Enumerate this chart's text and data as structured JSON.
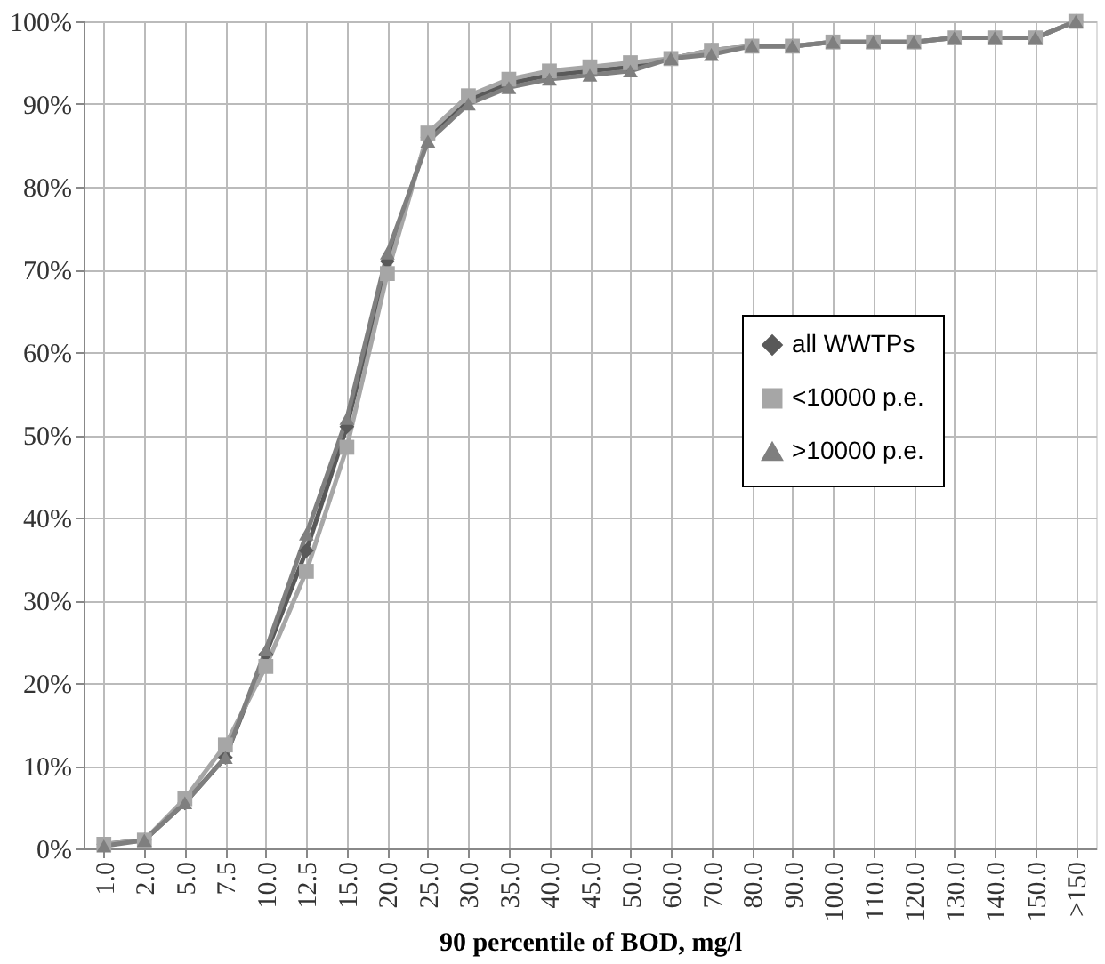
{
  "chart_data": {
    "type": "line",
    "xlabel": "90 percentile of BOD, mg/l",
    "categories": [
      "1.0",
      "2.0",
      "5.0",
      "7.5",
      "10.0",
      "12.5",
      "15.0",
      "20.0",
      "25.0",
      "30.0",
      "35.0",
      "40.0",
      "45.0",
      "50.0",
      "60.0",
      "70.0",
      "80.0",
      "90.0",
      "100.0",
      "110.0",
      "120.0",
      "130.0",
      "140.0",
      "150.0",
      ">150"
    ],
    "series": [
      {
        "name": "all WWTPs",
        "color": "#595959",
        "marker": "diamond",
        "values": [
          0.5,
          1,
          5.5,
          11,
          23.5,
          36,
          51,
          71,
          86,
          90.5,
          92.5,
          93.5,
          94,
          94.5,
          95.5,
          96.5,
          97,
          97,
          97.5,
          97.5,
          97.5,
          98,
          98,
          98,
          100
        ]
      },
      {
        "name": "<10000 p.e.",
        "color": "#a6a6a6",
        "marker": "square",
        "values": [
          0.5,
          1,
          6,
          12.5,
          22,
          33.5,
          48.5,
          69.5,
          86.5,
          91,
          93,
          94,
          94.5,
          95,
          95.5,
          96.5,
          97,
          97,
          97.5,
          97.5,
          97.5,
          98,
          98,
          98,
          100
        ]
      },
      {
        "name": ">10000 p.e.",
        "color": "#7f7f7f",
        "marker": "triangle",
        "values": [
          0.3,
          1,
          5.5,
          11,
          24,
          38,
          52,
          72,
          85.5,
          90,
          92,
          93,
          93.5,
          94,
          95.5,
          96,
          97,
          97,
          97.5,
          97.5,
          97.5,
          98,
          98,
          98,
          100
        ]
      }
    ],
    "ylim": [
      0,
      100
    ],
    "yticks": [
      {
        "value": 0,
        "label": "0%"
      },
      {
        "value": 10,
        "label": "10%"
      },
      {
        "value": 20,
        "label": "20%"
      },
      {
        "value": 30,
        "label": "30%"
      },
      {
        "value": 40,
        "label": "40%"
      },
      {
        "value": 50,
        "label": "50%"
      },
      {
        "value": 60,
        "label": "60%"
      },
      {
        "value": 70,
        "label": "70%"
      },
      {
        "value": 80,
        "label": "80%"
      },
      {
        "value": 90,
        "label": "90%"
      },
      {
        "value": 100,
        "label": "100%"
      }
    ],
    "grid": true,
    "legend": "right",
    "line_style": "solid"
  }
}
